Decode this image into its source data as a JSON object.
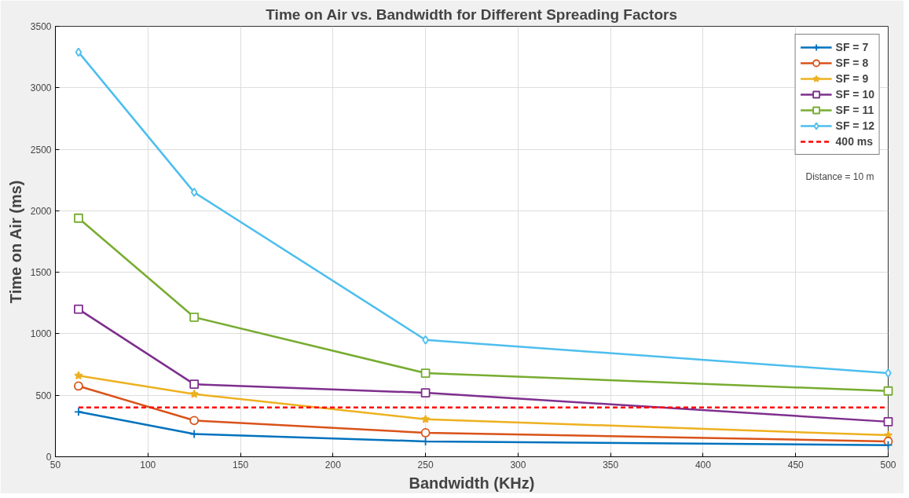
{
  "chart_data": {
    "type": "line",
    "title": "Time on Air vs. Bandwidth for Different Spreading Factors",
    "xlabel": "Bandwidth (KHz)",
    "ylabel": "Time on Air (ms)",
    "x": [
      62.5,
      125,
      250,
      500
    ],
    "series": [
      {
        "name": "SF = 7",
        "color": "#0072bd",
        "marker": "cross",
        "values": [
          365,
          185,
          125,
          95
        ]
      },
      {
        "name": "SF = 8",
        "color": "#d95319",
        "marker": "circle",
        "values": [
          575,
          295,
          195,
          125
        ]
      },
      {
        "name": "SF = 9",
        "color": "#edb120",
        "marker": "star",
        "values": [
          660,
          510,
          305,
          175
        ]
      },
      {
        "name": "SF = 10",
        "color": "#7e2f8e",
        "marker": "square",
        "values": [
          1200,
          590,
          520,
          285
        ]
      },
      {
        "name": "SF = 11",
        "color": "#77ac30",
        "marker": "square",
        "values": [
          1940,
          1135,
          680,
          535
        ]
      },
      {
        "name": "SF = 12",
        "color": "#4dbeee",
        "marker": "diamond",
        "values": [
          3290,
          2150,
          950,
          680
        ]
      },
      {
        "name": "400 ms",
        "color": "#ff0000",
        "marker": "none",
        "line_style": "dashed",
        "x": [
          62.5,
          500
        ],
        "values": [
          400,
          400
        ]
      }
    ],
    "annotations": [
      "Distance = 10 m"
    ],
    "xlim": [
      50,
      500
    ],
    "ylim": [
      0,
      3500
    ],
    "xticks": [
      50,
      100,
      150,
      200,
      250,
      300,
      350,
      400,
      450,
      500
    ],
    "yticks": [
      0,
      500,
      1000,
      1500,
      2000,
      2500,
      3000,
      3500
    ],
    "grid": true,
    "legend": "top right",
    "line_style": "solid"
  }
}
